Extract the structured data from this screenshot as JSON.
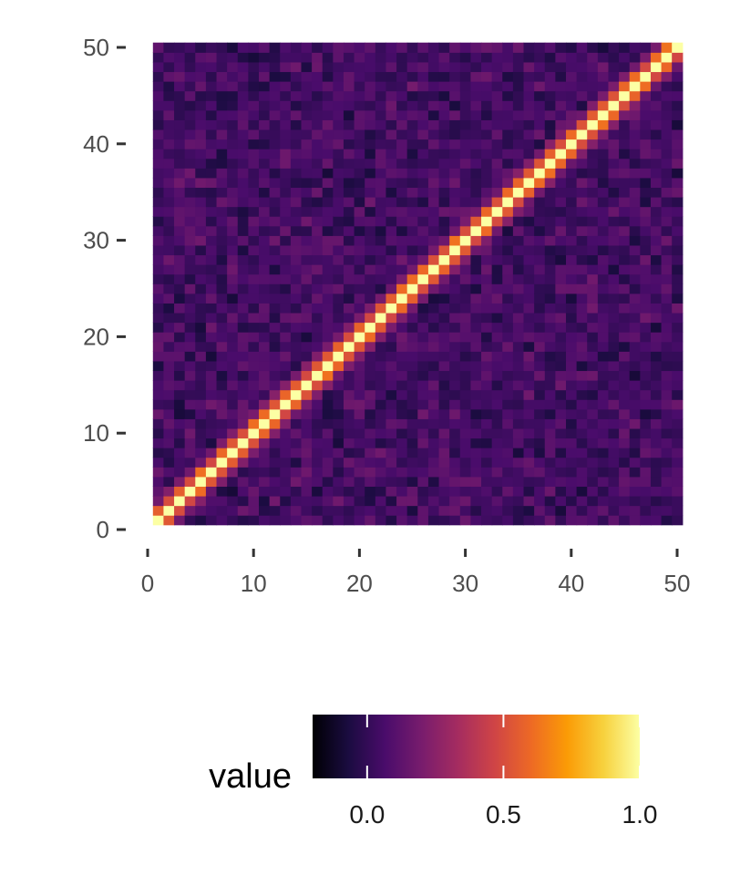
{
  "chart_data": {
    "type": "heatmap",
    "title": "",
    "xlabel": "",
    "ylabel": "",
    "x_range": [
      1,
      50
    ],
    "y_range": [
      1,
      50
    ],
    "xlim": [
      0,
      50
    ],
    "ylim": [
      0,
      50
    ],
    "x_ticks": [
      "0",
      "10",
      "20",
      "30",
      "40",
      "50"
    ],
    "y_ticks": [
      "0",
      "10",
      "20",
      "30",
      "40",
      "50"
    ],
    "colormap": "inferno",
    "diagonal_value": 1.0,
    "near_diagonal_offset_1": 0.55,
    "near_diagonal_offset_2": 0.2,
    "off_diagonal_range": [
      -0.2,
      0.3
    ],
    "noise_seed": 7,
    "legend": {
      "title": "value",
      "position": "bottom",
      "range": [
        -0.2,
        1.0
      ],
      "ticks": [
        {
          "value": 0.0,
          "label": "0.0"
        },
        {
          "value": 0.5,
          "label": "0.5"
        },
        {
          "value": 1.0,
          "label": "1.0"
        }
      ]
    },
    "grid": false
  },
  "colors": {
    "axis_text": "#4d4d4d",
    "tick_mark": "#333333",
    "inferno_stops": [
      "#000004",
      "#1b0c41",
      "#4a0c6b",
      "#781c6d",
      "#a52c60",
      "#cf4446",
      "#ed6925",
      "#fb9b06",
      "#f7d13d",
      "#fcffa4"
    ]
  }
}
